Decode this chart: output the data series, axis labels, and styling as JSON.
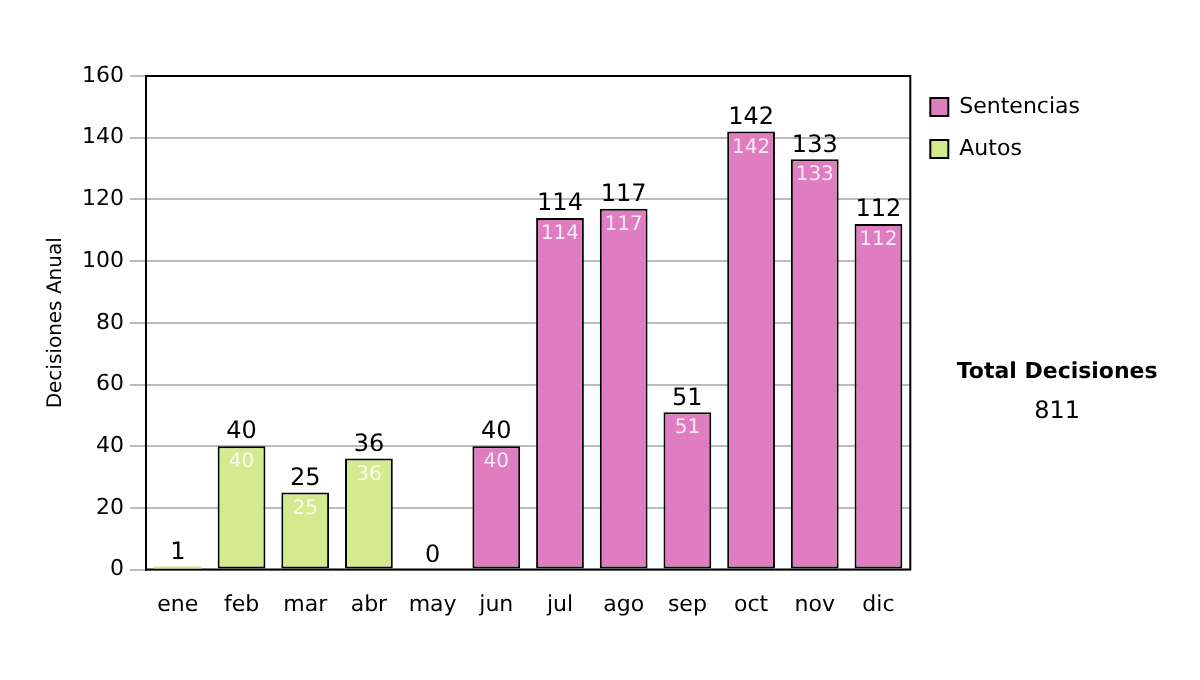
{
  "chart_data": {
    "type": "bar",
    "stacked": true,
    "ylabel": "Decisiones Anual",
    "categories": [
      "ene",
      "feb",
      "mar",
      "abr",
      "may",
      "jun",
      "jul",
      "ago",
      "sep",
      "oct",
      "nov",
      "dic"
    ],
    "series": [
      {
        "name": "Sentencias",
        "color": "#e07cc0",
        "values": [
          null,
          null,
          null,
          null,
          null,
          40,
          114,
          117,
          51,
          142,
          133,
          112
        ],
        "value_labels": [
          null,
          null,
          null,
          null,
          null,
          "40",
          "114",
          "117",
          "51",
          "142",
          "133",
          "112"
        ]
      },
      {
        "name": "Autos",
        "color": "#d4ea8e",
        "values": [
          1,
          40,
          25,
          36,
          0,
          null,
          null,
          null,
          null,
          null,
          null,
          null
        ],
        "value_labels": [
          null,
          "40",
          "25",
          "36",
          null,
          null,
          null,
          null,
          null,
          null,
          null,
          null
        ]
      }
    ],
    "totals": [
      "1",
      "40",
      "25",
      "36",
      "0",
      "40",
      "114",
      "117",
      "51",
      "142",
      "133",
      "112"
    ],
    "ylim": [
      0,
      160
    ],
    "yticks": [
      0,
      20,
      40,
      60,
      80,
      100,
      120,
      140,
      160
    ],
    "grid": "y",
    "legend": "right",
    "annotations": [
      "Total Decisiones",
      "811"
    ]
  }
}
